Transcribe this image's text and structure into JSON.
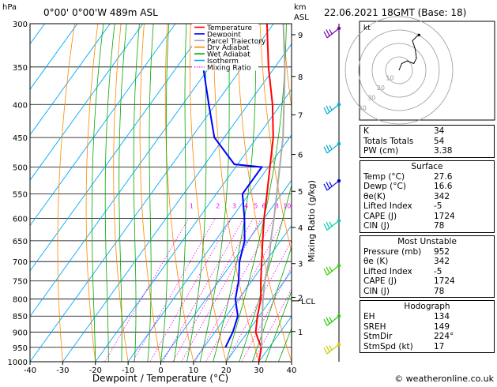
{
  "header": {
    "hpa_label": "hPa",
    "location": "0°00' 0°00'W 489m ASL",
    "km_label": "km",
    "asl_label": "ASL",
    "datetime": "22.06.2021 18GMT (Base: 18)"
  },
  "footer": {
    "credit": "© weatheronline.co.uk"
  },
  "legend": [
    {
      "label": "Temperature",
      "color": "#ff0000",
      "style": "solid"
    },
    {
      "label": "Dewpoint",
      "color": "#0000ff",
      "style": "solid"
    },
    {
      "label": "Parcel Trajectory",
      "color": "#aaaaaa",
      "style": "solid"
    },
    {
      "label": "Dry Adiabat",
      "color": "#ff8800",
      "style": "solid"
    },
    {
      "label": "Wet Adiabat",
      "color": "#00aa00",
      "style": "solid"
    },
    {
      "label": "Isotherm",
      "color": "#00aaff",
      "style": "solid"
    },
    {
      "label": "Mixing Ratio",
      "color": "#ff00ff",
      "style": "dotted"
    }
  ],
  "chart_data": {
    "type": "line",
    "xlabel": "Dewpoint / Temperature (°C)",
    "ylabel": "hPa",
    "y2label": "Mixing Ratio (g/kg)",
    "xlim": [
      -40,
      40
    ],
    "ylim": [
      1000,
      300
    ],
    "x_ticks": [
      -40,
      -30,
      -20,
      -10,
      0,
      10,
      20,
      30,
      40
    ],
    "pressure_ticks": [
      300,
      350,
      400,
      450,
      500,
      550,
      600,
      650,
      700,
      750,
      800,
      850,
      900,
      950,
      1000
    ],
    "km_ticks": [
      {
        "km": "9",
        "p": 312
      },
      {
        "km": "8",
        "p": 362
      },
      {
        "km": "7",
        "p": 415
      },
      {
        "km": "6",
        "p": 478
      },
      {
        "km": "5",
        "p": 545
      },
      {
        "km": "4",
        "p": 620
      },
      {
        "km": "3",
        "p": 705
      },
      {
        "km": "2",
        "p": 795
      },
      {
        "km": "1",
        "p": 898
      }
    ],
    "lcl": {
      "label": "LCL",
      "p": 805
    },
    "mixing_ratio_labels": [
      "1",
      "2",
      "3",
      "4",
      "5",
      "6",
      "8",
      "10",
      "15",
      "20",
      "25"
    ],
    "mixing_ratio_label_p": 590,
    "series": [
      {
        "name": "Temperature",
        "color": "#ff0000",
        "points": [
          [
            1000,
            30
          ],
          [
            950,
            27.6
          ],
          [
            925,
            25
          ],
          [
            900,
            22.5
          ],
          [
            850,
            19.5
          ],
          [
            800,
            16.8
          ],
          [
            750,
            12.8
          ],
          [
            700,
            8.8
          ],
          [
            650,
            4.5
          ],
          [
            600,
            0
          ],
          [
            550,
            -4.5
          ],
          [
            500,
            -9.5
          ],
          [
            450,
            -15
          ],
          [
            400,
            -22.5
          ],
          [
            350,
            -32
          ],
          [
            300,
            -42
          ]
        ]
      },
      {
        "name": "Dewpoint",
        "color": "#0000ff",
        "points": [
          [
            950,
            16.6
          ],
          [
            900,
            15.5
          ],
          [
            850,
            13.5
          ],
          [
            800,
            9
          ],
          [
            750,
            6
          ],
          [
            700,
            2
          ],
          [
            650,
            -1
          ],
          [
            600,
            -6
          ],
          [
            550,
            -12
          ],
          [
            500,
            -12
          ],
          [
            495,
            -21
          ],
          [
            450,
            -33
          ],
          [
            400,
            -42
          ],
          [
            350,
            -52
          ],
          [
            320,
            -56
          ],
          [
            300,
            -62
          ]
        ]
      },
      {
        "name": "Parcel Trajectory",
        "color": "#aaaaaa",
        "points": [
          [
            950,
            27.6
          ],
          [
            850,
            21
          ],
          [
            805,
            17.8
          ],
          [
            750,
            14
          ],
          [
            700,
            11
          ],
          [
            650,
            7
          ],
          [
            600,
            3
          ],
          [
            550,
            -1.5
          ],
          [
            500,
            -6.5
          ],
          [
            450,
            -12
          ],
          [
            400,
            -19
          ],
          [
            350,
            -27
          ],
          [
            300,
            -37
          ]
        ]
      }
    ]
  },
  "wind_barbs": [
    {
      "p": 305,
      "color": "#7700aa"
    },
    {
      "p": 400,
      "color": "#00aacc"
    },
    {
      "p": 460,
      "color": "#00aacc"
    },
    {
      "p": 525,
      "color": "#0000dd"
    },
    {
      "p": 605,
      "color": "#00ccaa"
    },
    {
      "p": 710,
      "color": "#33cc00"
    },
    {
      "p": 850,
      "color": "#22cc00"
    },
    {
      "p": 940,
      "color": "#cccc00"
    }
  ],
  "hodograph": {
    "unit_label": "kt",
    "ring_labels": [
      "10",
      "20",
      "30",
      "40"
    ],
    "trace": [
      [
        0,
        0
      ],
      [
        2,
        5
      ],
      [
        6,
        7
      ],
      [
        11,
        5
      ],
      [
        13,
        9
      ],
      [
        12,
        16
      ],
      [
        10,
        22
      ],
      [
        14,
        26
      ]
    ]
  },
  "indices": {
    "top": [
      {
        "label": "K",
        "value": "34"
      },
      {
        "label": "Totals Totals",
        "value": "54"
      },
      {
        "label": "PW (cm)",
        "value": "3.38"
      }
    ],
    "surface": {
      "title": "Surface",
      "rows": [
        {
          "label": "Temp (°C)",
          "value": "27.6"
        },
        {
          "label": "Dewp (°C)",
          "value": "16.6"
        },
        {
          "label": "θe(K)",
          "value": "342"
        },
        {
          "label": "Lifted Index",
          "value": "-5"
        },
        {
          "label": "CAPE (J)",
          "value": "1724"
        },
        {
          "label": "CIN (J)",
          "value": "78"
        }
      ]
    },
    "most_unstable": {
      "title": "Most Unstable",
      "rows": [
        {
          "label": "Pressure (mb)",
          "value": "952"
        },
        {
          "label": "θe (K)",
          "value": "342"
        },
        {
          "label": "Lifted Index",
          "value": "-5"
        },
        {
          "label": "CAPE (J)",
          "value": "1724"
        },
        {
          "label": "CIN (J)",
          "value": "78"
        }
      ]
    },
    "hodograph_table": {
      "title": "Hodograph",
      "rows": [
        {
          "label": "EH",
          "value": "134"
        },
        {
          "label": "SREH",
          "value": "149"
        },
        {
          "label": "StmDir",
          "value": "224°"
        },
        {
          "label": "StmSpd (kt)",
          "value": "17"
        }
      ]
    }
  }
}
